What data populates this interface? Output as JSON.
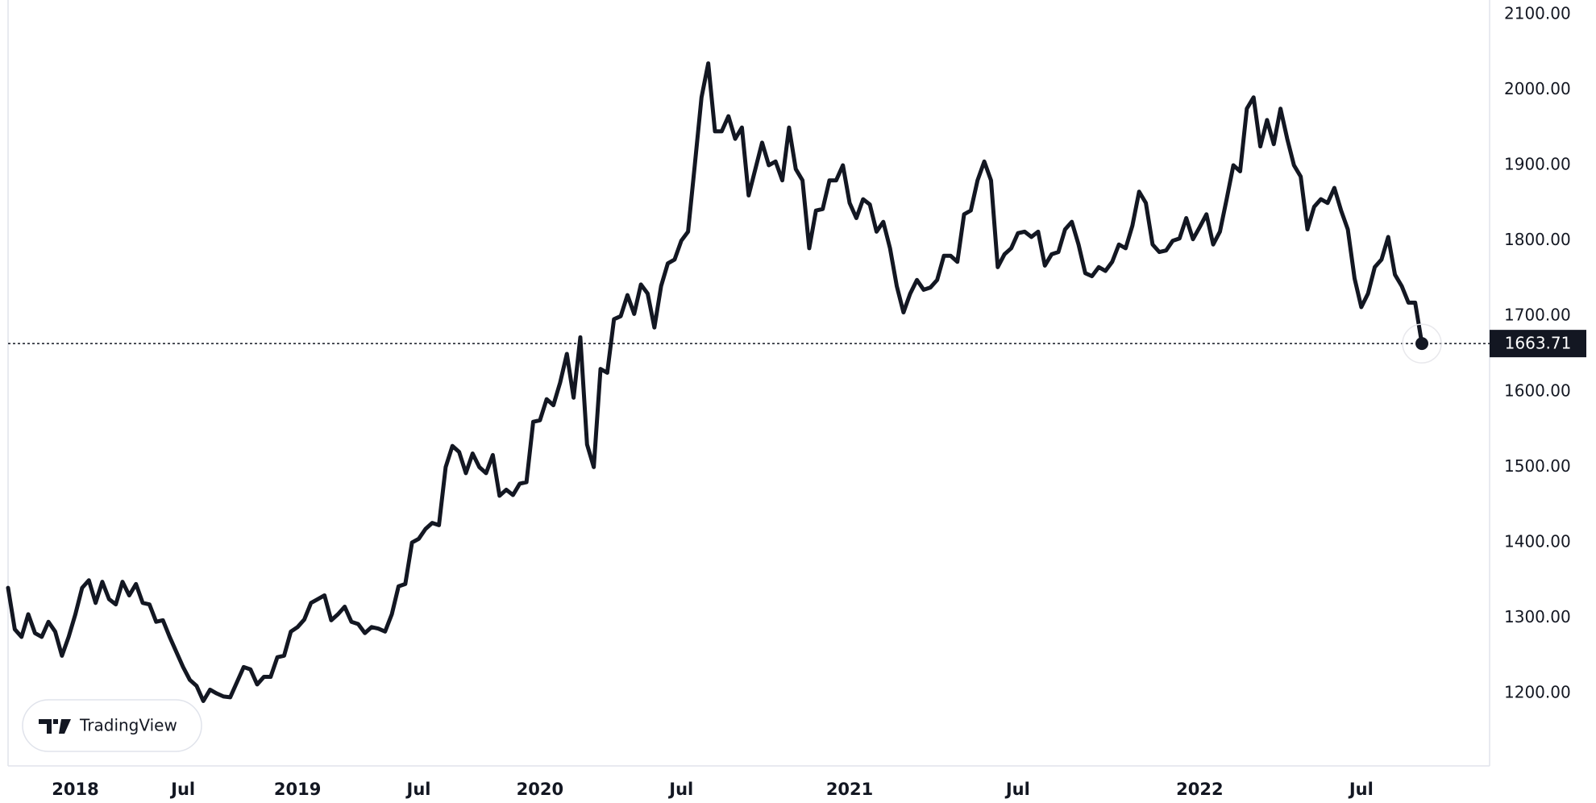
{
  "chart_data": {
    "type": "line",
    "watermark": "TradingView",
    "color": "#131722",
    "grid": false,
    "values": [
      1340,
      1285,
      1275,
      1305,
      1280,
      1275,
      1295,
      1282,
      1250,
      1275,
      1305,
      1340,
      1350,
      1320,
      1348,
      1325,
      1318,
      1348,
      1330,
      1345,
      1320,
      1318,
      1295,
      1297,
      1275,
      1255,
      1235,
      1218,
      1210,
      1190,
      1205,
      1200,
      1196,
      1195,
      1215,
      1235,
      1232,
      1212,
      1222,
      1222,
      1248,
      1250,
      1282,
      1288,
      1298,
      1320,
      1325,
      1330,
      1297,
      1305,
      1315,
      1295,
      1292,
      1280,
      1288,
      1286,
      1282,
      1305,
      1342,
      1345,
      1400,
      1405,
      1418,
      1426,
      1423,
      1500,
      1528,
      1520,
      1492,
      1518,
      1500,
      1492,
      1516,
      1462,
      1470,
      1463,
      1478,
      1480,
      1560,
      1562,
      1590,
      1582,
      1612,
      1650,
      1592,
      1672,
      1530,
      1500,
      1630,
      1625,
      1696,
      1700,
      1728,
      1703,
      1742,
      1730,
      1685,
      1740,
      1770,
      1775,
      1800,
      1812,
      1900,
      1990,
      2035,
      1945,
      1945,
      1965,
      1935,
      1950,
      1860,
      1895,
      1930,
      1900,
      1905,
      1880,
      1950,
      1895,
      1880,
      1790,
      1840,
      1842,
      1880,
      1880,
      1900,
      1850,
      1830,
      1855,
      1848,
      1812,
      1825,
      1790,
      1740,
      1705,
      1730,
      1748,
      1735,
      1738,
      1748,
      1780,
      1780,
      1772,
      1835,
      1840,
      1880,
      1905,
      1880,
      1765,
      1782,
      1790,
      1810,
      1812,
      1805,
      1812,
      1767,
      1782,
      1785,
      1815,
      1825,
      1795,
      1757,
      1753,
      1765,
      1760,
      1772,
      1795,
      1790,
      1820,
      1865,
      1850,
      1795,
      1785,
      1787,
      1800,
      1803,
      1830,
      1802,
      1818,
      1835,
      1795,
      1812,
      1855,
      1900,
      1892,
      1975,
      1990,
      1925,
      1960,
      1928,
      1975,
      1935,
      1900,
      1885,
      1815,
      1845,
      1855,
      1850,
      1870,
      1840,
      1815,
      1750,
      1712,
      1730,
      1765,
      1775,
      1805,
      1755,
      1740,
      1718,
      1718,
      1663.71
    ],
    "categories": [
      null,
      null,
      null,
      null,
      null,
      null,
      null,
      null,
      null,
      null,
      "2018",
      null,
      null,
      null,
      null,
      null,
      null,
      null,
      null,
      null,
      null,
      null,
      null,
      null,
      null,
      null,
      "Jul",
      null,
      null,
      null,
      null,
      null,
      null,
      null,
      null,
      null,
      null,
      null,
      null,
      null,
      null,
      null,
      null,
      "2019",
      null,
      null,
      null,
      null,
      null,
      null,
      null,
      null,
      null,
      null,
      null,
      null,
      null,
      null,
      null,
      null,
      null,
      "Jul",
      null,
      null,
      null,
      null,
      null,
      null,
      null,
      null,
      null,
      null,
      null,
      null,
      null,
      null,
      null,
      null,
      null,
      "2020",
      null,
      null,
      null,
      null,
      null,
      null,
      null,
      null,
      null,
      null,
      null,
      null,
      null,
      null,
      null,
      null,
      null,
      null,
      null,
      null,
      "Jul",
      null,
      null,
      null,
      null,
      null,
      null,
      null,
      null,
      null,
      null,
      null,
      null,
      null,
      null,
      null,
      null,
      null,
      null,
      null,
      null,
      null,
      null,
      null,
      null,
      "2021",
      null,
      null,
      null,
      null,
      null,
      null,
      null,
      null,
      null,
      null,
      null,
      null,
      null,
      null,
      null,
      null,
      null,
      null,
      null,
      null,
      null,
      null,
      null,
      null,
      "Jul",
      null,
      null,
      null,
      null,
      null,
      null,
      null,
      null,
      null,
      null,
      null,
      null,
      null,
      null,
      null,
      null,
      null,
      null,
      null,
      null,
      null,
      null,
      null,
      null,
      null,
      null,
      "2022",
      null,
      null,
      null,
      null,
      null,
      null,
      null,
      null,
      null,
      null,
      null,
      null,
      null,
      null,
      null,
      null,
      null,
      null,
      null,
      null,
      null,
      null,
      null,
      "Jul",
      null,
      null,
      null,
      null,
      null,
      null,
      null,
      null,
      null
    ],
    "ylim": [
      1104,
      2119
    ],
    "yticks": [
      {
        "value": 1200,
        "label": "1200.00"
      },
      {
        "value": 1300,
        "label": "1300.00"
      },
      {
        "value": 1400,
        "label": "1400.00"
      },
      {
        "value": 1500,
        "label": "1500.00"
      },
      {
        "value": 1600,
        "label": "1600.00"
      },
      {
        "value": 1700,
        "label": "1700.00"
      },
      {
        "value": 1800,
        "label": "1800.00"
      },
      {
        "value": 1900,
        "label": "1900.00"
      },
      {
        "value": 2000,
        "label": "2000.00"
      },
      {
        "value": 2100,
        "label": "2100.00"
      }
    ]
  }
}
